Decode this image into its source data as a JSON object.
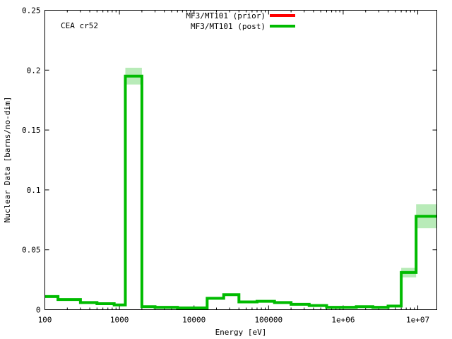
{
  "chart_data": {
    "type": "step",
    "annotation": "CEA cr52",
    "xlabel": "Energy [eV]",
    "ylabel": "Nuclear Data [barns/no-dim]",
    "x_scale": "log",
    "xlim": [
      100,
      18000000
    ],
    "ylim": [
      0,
      0.25
    ],
    "x_ticks": [
      {
        "value": 100,
        "label": "100"
      },
      {
        "value": 1000,
        "label": "1000"
      },
      {
        "value": 10000,
        "label": "10000"
      },
      {
        "value": 100000,
        "label": "100000"
      },
      {
        "value": 1000000,
        "label": "1e+06"
      },
      {
        "value": 10000000,
        "label": "1e+07"
      }
    ],
    "y_ticks": [
      {
        "value": 0,
        "label": "0"
      },
      {
        "value": 0.05,
        "label": "0.05"
      },
      {
        "value": 0.1,
        "label": "0.1"
      },
      {
        "value": 0.15,
        "label": "0.15"
      },
      {
        "value": 0.2,
        "label": "0.2"
      },
      {
        "value": 0.25,
        "label": "0.25"
      }
    ],
    "legend_position": "top-center",
    "series": [
      {
        "name": "MF3/MT101 (prior)",
        "color": "#ff0000",
        "bins": []
      },
      {
        "name": "MF3/MT101 (post)",
        "color": "#00bb00",
        "band_color": "#b8ebb8",
        "bins": [
          {
            "x0": 100,
            "x1": 150,
            "y": 0.011,
            "lo": 0.011,
            "hi": 0.011
          },
          {
            "x0": 150,
            "x1": 300,
            "y": 0.0085,
            "lo": 0.0085,
            "hi": 0.0085
          },
          {
            "x0": 300,
            "x1": 500,
            "y": 0.006,
            "lo": 0.006,
            "hi": 0.006
          },
          {
            "x0": 500,
            "x1": 850,
            "y": 0.005,
            "lo": 0.005,
            "hi": 0.005
          },
          {
            "x0": 850,
            "x1": 1200,
            "y": 0.004,
            "lo": 0.004,
            "hi": 0.004
          },
          {
            "x0": 1200,
            "x1": 2000,
            "y": 0.195,
            "lo": 0.188,
            "hi": 0.202
          },
          {
            "x0": 2000,
            "x1": 3000,
            "y": 0.0025,
            "lo": 0.0025,
            "hi": 0.0025
          },
          {
            "x0": 3000,
            "x1": 6000,
            "y": 0.002,
            "lo": 0.002,
            "hi": 0.002
          },
          {
            "x0": 6000,
            "x1": 15000,
            "y": 0.0015,
            "lo": 0.0015,
            "hi": 0.0015
          },
          {
            "x0": 15000,
            "x1": 25000,
            "y": 0.0095,
            "lo": 0.0095,
            "hi": 0.0095
          },
          {
            "x0": 25000,
            "x1": 40000,
            "y": 0.0125,
            "lo": 0.0125,
            "hi": 0.0125
          },
          {
            "x0": 40000,
            "x1": 70000,
            "y": 0.0065,
            "lo": 0.0065,
            "hi": 0.0065
          },
          {
            "x0": 70000,
            "x1": 120000,
            "y": 0.007,
            "lo": 0.007,
            "hi": 0.007
          },
          {
            "x0": 120000,
            "x1": 200000,
            "y": 0.006,
            "lo": 0.006,
            "hi": 0.006
          },
          {
            "x0": 200000,
            "x1": 350000,
            "y": 0.0045,
            "lo": 0.0045,
            "hi": 0.0045
          },
          {
            "x0": 350000,
            "x1": 600000,
            "y": 0.0035,
            "lo": 0.0035,
            "hi": 0.0035
          },
          {
            "x0": 600000,
            "x1": 1500000,
            "y": 0.002,
            "lo": 0.002,
            "hi": 0.002
          },
          {
            "x0": 1500000,
            "x1": 2500000,
            "y": 0.0025,
            "lo": 0.0025,
            "hi": 0.0025
          },
          {
            "x0": 2500000,
            "x1": 4000000,
            "y": 0.002,
            "lo": 0.002,
            "hi": 0.002
          },
          {
            "x0": 4000000,
            "x1": 6000000,
            "y": 0.003,
            "lo": 0.003,
            "hi": 0.003
          },
          {
            "x0": 6000000,
            "x1": 9500000,
            "y": 0.031,
            "lo": 0.027,
            "hi": 0.035
          },
          {
            "x0": 9500000,
            "x1": 18000000,
            "y": 0.078,
            "lo": 0.068,
            "hi": 0.088
          }
        ]
      }
    ]
  }
}
